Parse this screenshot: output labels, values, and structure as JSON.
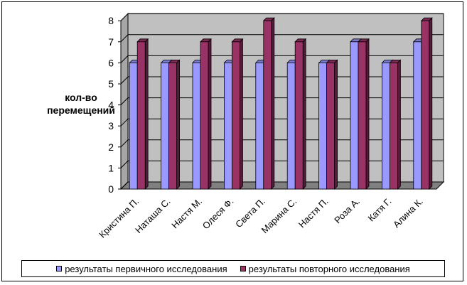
{
  "chart_data": {
    "type": "bar",
    "title": "",
    "ylabel_lines": [
      "кол-во",
      "перемещений"
    ],
    "xlabel": "",
    "categories": [
      "Кристина П.",
      "Наташа С.",
      "Настя М.",
      "Олеся Ф.",
      "Света П.",
      "Марина С.",
      "Настя П.",
      "Роза А.",
      "Катя Г.",
      "Алина К."
    ],
    "series": [
      {
        "name": "результаты первичного исследования",
        "color": "#9999ff",
        "values": [
          6,
          6,
          6,
          6,
          6,
          6,
          6,
          7,
          6,
          7
        ]
      },
      {
        "name": "результаты повторного исследования",
        "color": "#993366",
        "values": [
          7,
          6,
          7,
          7,
          8,
          7,
          6,
          7,
          6,
          8
        ]
      }
    ],
    "ylim": [
      0,
      8
    ],
    "yticks": [
      0,
      1,
      2,
      3,
      4,
      5,
      6,
      7,
      8
    ],
    "grid": true,
    "legend_position": "bottom",
    "style": "3d-clustered-column",
    "wall_color": "#c0c0c0"
  }
}
